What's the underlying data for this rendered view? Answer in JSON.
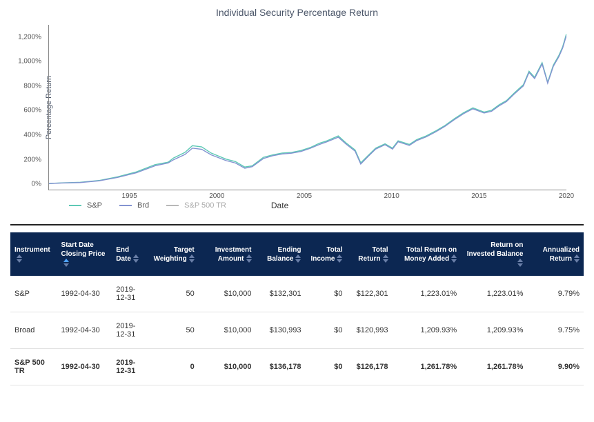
{
  "chart": {
    "title": "Individual Security Percentage Return",
    "y_axis_label": "Percentage Return",
    "x_axis_label": "Date",
    "x_range": [
      1992.33,
      2020
    ],
    "y_range": [
      -50,
      1300
    ],
    "x_ticks": [
      1995,
      2000,
      2005,
      2010,
      2015,
      2020
    ],
    "y_ticks": [
      {
        "v": 0,
        "label": "0%"
      },
      {
        "v": 200,
        "label": "200%"
      },
      {
        "v": 400,
        "label": "400%"
      },
      {
        "v": 600,
        "label": "600%"
      },
      {
        "v": 800,
        "label": "800%"
      },
      {
        "v": 1000,
        "label": "1,000%"
      },
      {
        "v": 1200,
        "label": "1,200%"
      }
    ],
    "background_color": "#ffffff",
    "axis_color": "#888888",
    "series": [
      {
        "name": "S&P",
        "color": "#5ec9b5",
        "stroke_width": 1.4,
        "data": [
          [
            1992.33,
            0
          ],
          [
            1993,
            5
          ],
          [
            1994,
            10
          ],
          [
            1995,
            25
          ],
          [
            1996,
            55
          ],
          [
            1997,
            95
          ],
          [
            1998,
            155
          ],
          [
            1998.7,
            175
          ],
          [
            1999,
            210
          ],
          [
            1999.6,
            255
          ],
          [
            2000,
            310
          ],
          [
            2000.5,
            300
          ],
          [
            2001,
            250
          ],
          [
            2001.8,
            200
          ],
          [
            2002.3,
            180
          ],
          [
            2002.8,
            135
          ],
          [
            2003.2,
            145
          ],
          [
            2003.8,
            215
          ],
          [
            2004.3,
            235
          ],
          [
            2004.8,
            250
          ],
          [
            2005.3,
            255
          ],
          [
            2005.8,
            270
          ],
          [
            2006.3,
            295
          ],
          [
            2006.8,
            330
          ],
          [
            2007.2,
            350
          ],
          [
            2007.8,
            390
          ],
          [
            2008.2,
            335
          ],
          [
            2008.7,
            275
          ],
          [
            2009.0,
            170
          ],
          [
            2009.4,
            230
          ],
          [
            2009.8,
            290
          ],
          [
            2010.3,
            325
          ],
          [
            2010.7,
            290
          ],
          [
            2011,
            350
          ],
          [
            2011.6,
            320
          ],
          [
            2012,
            360
          ],
          [
            2012.5,
            390
          ],
          [
            2013,
            430
          ],
          [
            2013.5,
            475
          ],
          [
            2014,
            530
          ],
          [
            2014.5,
            580
          ],
          [
            2015,
            620
          ],
          [
            2015.6,
            585
          ],
          [
            2016,
            600
          ],
          [
            2016.4,
            645
          ],
          [
            2016.8,
            680
          ],
          [
            2017.2,
            740
          ],
          [
            2017.7,
            810
          ],
          [
            2018,
            920
          ],
          [
            2018.3,
            870
          ],
          [
            2018.7,
            990
          ],
          [
            2019,
            830
          ],
          [
            2019.3,
            970
          ],
          [
            2019.6,
            1050
          ],
          [
            2019.8,
            1120
          ],
          [
            2020,
            1225
          ]
        ]
      },
      {
        "name": "Brd",
        "color": "#8393d1",
        "stroke_width": 1.4,
        "data": [
          [
            1992.33,
            0
          ],
          [
            1993,
            4
          ],
          [
            1994,
            8
          ],
          [
            1995,
            22
          ],
          [
            1996,
            50
          ],
          [
            1997,
            88
          ],
          [
            1998,
            145
          ],
          [
            1998.7,
            168
          ],
          [
            1999,
            195
          ],
          [
            1999.6,
            238
          ],
          [
            2000,
            290
          ],
          [
            2000.5,
            280
          ],
          [
            2001,
            235
          ],
          [
            2001.8,
            188
          ],
          [
            2002.3,
            168
          ],
          [
            2002.8,
            125
          ],
          [
            2003.2,
            138
          ],
          [
            2003.8,
            205
          ],
          [
            2004.3,
            228
          ],
          [
            2004.8,
            242
          ],
          [
            2005.3,
            248
          ],
          [
            2005.8,
            262
          ],
          [
            2006.3,
            288
          ],
          [
            2006.8,
            320
          ],
          [
            2007.2,
            342
          ],
          [
            2007.8,
            380
          ],
          [
            2008.2,
            325
          ],
          [
            2008.7,
            265
          ],
          [
            2009.0,
            160
          ],
          [
            2009.4,
            222
          ],
          [
            2009.8,
            282
          ],
          [
            2010.3,
            318
          ],
          [
            2010.7,
            282
          ],
          [
            2011,
            342
          ],
          [
            2011.6,
            312
          ],
          [
            2012,
            352
          ],
          [
            2012.5,
            382
          ],
          [
            2013,
            422
          ],
          [
            2013.5,
            468
          ],
          [
            2014,
            522
          ],
          [
            2014.5,
            572
          ],
          [
            2015,
            612
          ],
          [
            2015.6,
            578
          ],
          [
            2016,
            592
          ],
          [
            2016.4,
            636
          ],
          [
            2016.8,
            672
          ],
          [
            2017.2,
            732
          ],
          [
            2017.7,
            800
          ],
          [
            2018,
            910
          ],
          [
            2018.3,
            860
          ],
          [
            2018.7,
            980
          ],
          [
            2019,
            822
          ],
          [
            2019.3,
            960
          ],
          [
            2019.6,
            1040
          ],
          [
            2019.8,
            1110
          ],
          [
            2020,
            1212
          ]
        ]
      },
      {
        "name": "S&P 500 TR",
        "color": "#b8b8b8",
        "stroke_width": 1.2,
        "dimmed": true,
        "data": []
      }
    ]
  },
  "table": {
    "header_bg": "#0c2752",
    "header_fg": "#ffffff",
    "sort_icon_color": "#6a7fa8",
    "active_sort_color": "#4da3ff",
    "columns": [
      {
        "label": "Instrument",
        "align": "left",
        "sorted": false
      },
      {
        "label": "Start Date Closing Price",
        "align": "left",
        "sorted": true
      },
      {
        "label": "End Date",
        "align": "left",
        "sorted": false
      },
      {
        "label": "Target Weighting",
        "align": "right",
        "sorted": false
      },
      {
        "label": "Investment Amount",
        "align": "right",
        "sorted": false
      },
      {
        "label": "Ending Balance",
        "align": "right",
        "sorted": false
      },
      {
        "label": "Total Income",
        "align": "right",
        "sorted": false
      },
      {
        "label": "Total Return",
        "align": "right",
        "sorted": false
      },
      {
        "label": "Total Reutrn on Money Added",
        "align": "right",
        "sorted": false
      },
      {
        "label": "Return on Invested Balance",
        "align": "right",
        "sorted": false
      },
      {
        "label": "Annualized Return",
        "align": "right",
        "sorted": false
      }
    ],
    "rows": [
      {
        "bold": false,
        "cells": [
          "S&P",
          "1992-04-30",
          "2019-12-31",
          "50",
          "$10,000",
          "$132,301",
          "$0",
          "$122,301",
          "1,223.01%",
          "1,223.01%",
          "9.79%"
        ]
      },
      {
        "bold": false,
        "cells": [
          "Broad",
          "1992-04-30",
          "2019-12-31",
          "50",
          "$10,000",
          "$130,993",
          "$0",
          "$120,993",
          "1,209.93%",
          "1,209.93%",
          "9.75%"
        ]
      },
      {
        "bold": true,
        "cells": [
          "S&P 500 TR",
          "1992-04-30",
          "2019-12-31",
          "0",
          "$10,000",
          "$136,178",
          "$0",
          "$126,178",
          "1,261.78%",
          "1,261.78%",
          "9.90%"
        ]
      }
    ]
  }
}
